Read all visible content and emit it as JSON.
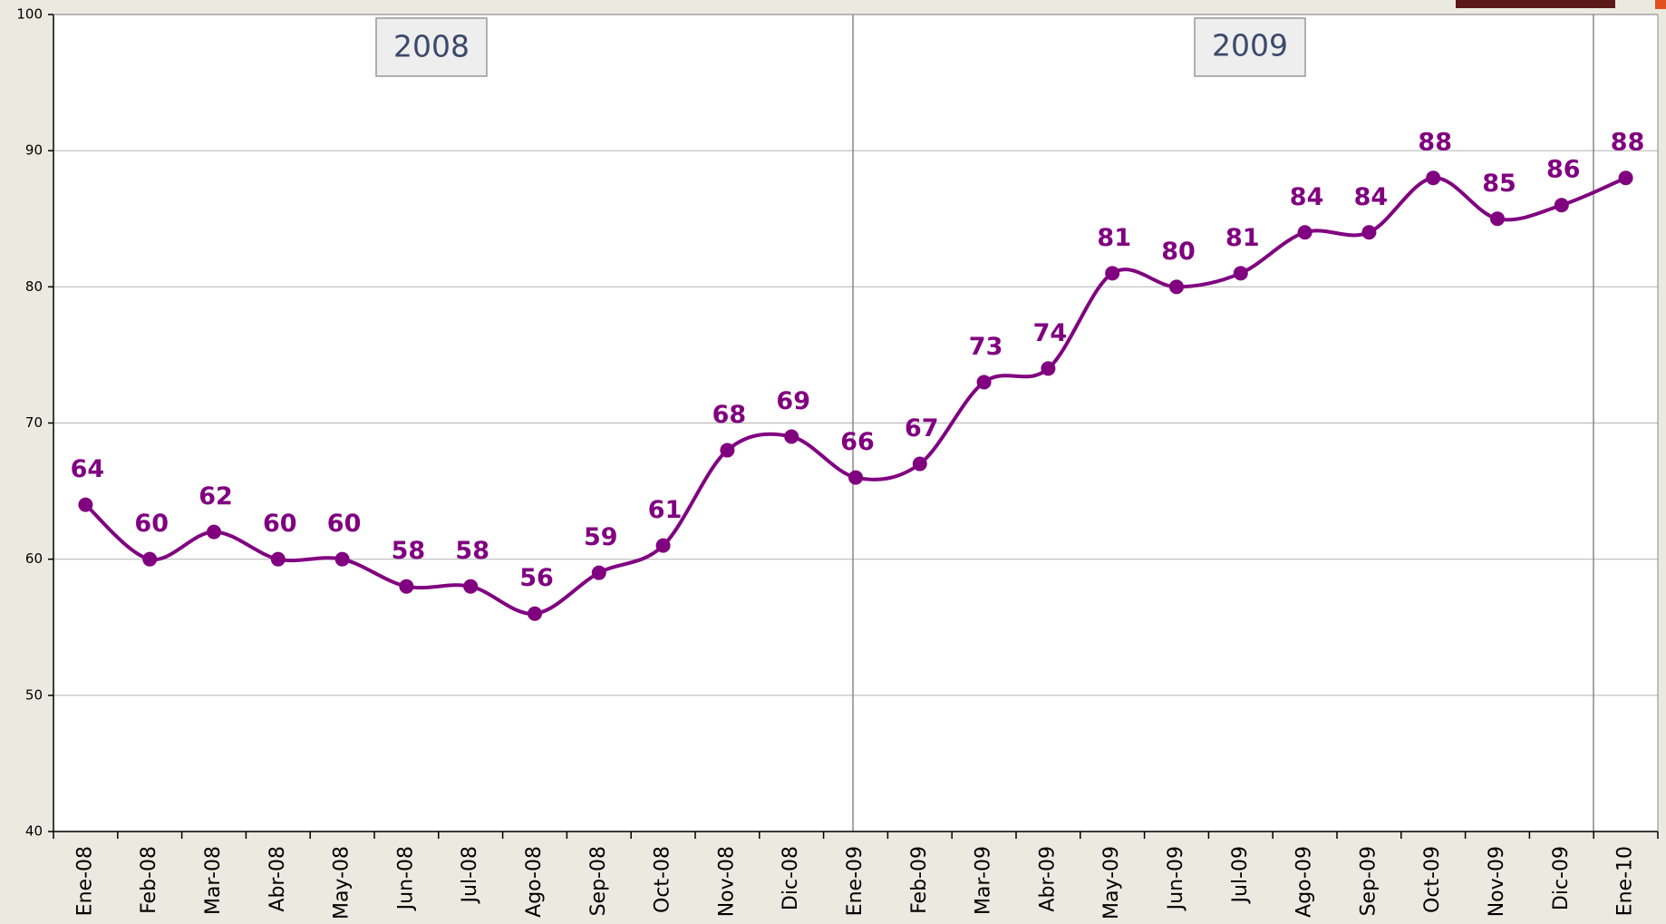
{
  "chart_data": {
    "type": "line",
    "annotations": [
      "2008",
      "2009"
    ],
    "categories": [
      "Ene-08",
      "Feb-08",
      "Mar-08",
      "Abr-08",
      "May-08",
      "Jun-08",
      "Jul-08",
      "Ago-08",
      "Sep-08",
      "Oct-08",
      "Nov-08",
      "Dic-08",
      "Ene-09",
      "Feb-09",
      "Mar-09",
      "Abr-09",
      "May-09",
      "Jun-09",
      "Jul-09",
      "Ago-09",
      "Sep-09",
      "Oct-09",
      "Nov-09",
      "Dic-09",
      "Ene-10"
    ],
    "values": [
      64,
      60,
      62,
      60,
      60,
      58,
      58,
      56,
      59,
      61,
      68,
      69,
      66,
      67,
      73,
      74,
      81,
      80,
      81,
      84,
      84,
      88,
      85,
      86,
      88
    ],
    "color": "#800080",
    "ylim": [
      40,
      100
    ],
    "yticks": [
      40,
      50,
      60,
      70,
      80,
      90,
      100
    ],
    "grid": true
  }
}
